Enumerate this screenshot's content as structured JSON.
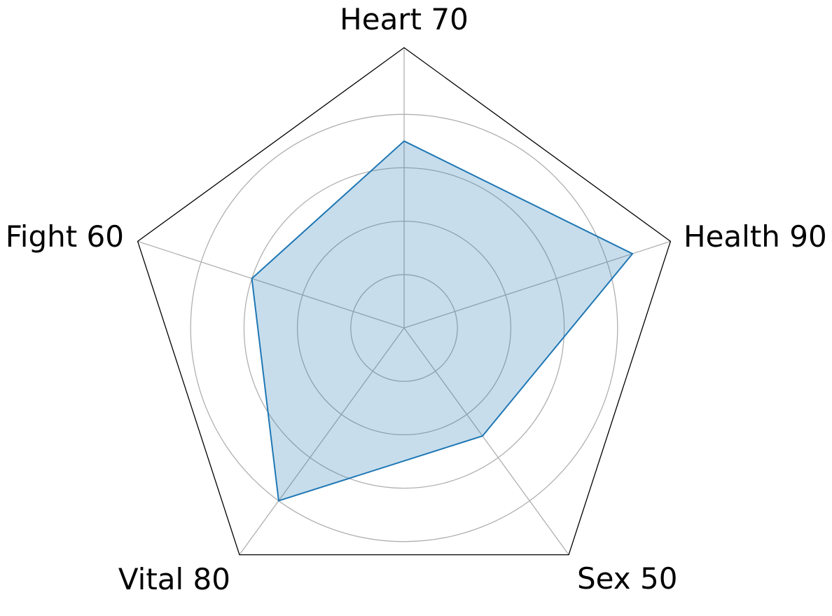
{
  "chart_data": {
    "type": "radar",
    "axes": [
      "Heart",
      "Health",
      "Sex",
      "Vital",
      "Fight"
    ],
    "labels": [
      "Heart 70",
      "Health 90",
      "Sex 50",
      "Vital 80",
      "Fight 60"
    ],
    "values": [
      70,
      90,
      50,
      80,
      60
    ],
    "rlim": [
      0,
      105
    ],
    "rgrid": [
      20,
      40,
      60,
      80
    ],
    "grid": true,
    "colors": {
      "line": "#1f77b4",
      "fill": "#1f77b4",
      "grid": "#b0b0b0",
      "frame": "#000000"
    }
  }
}
